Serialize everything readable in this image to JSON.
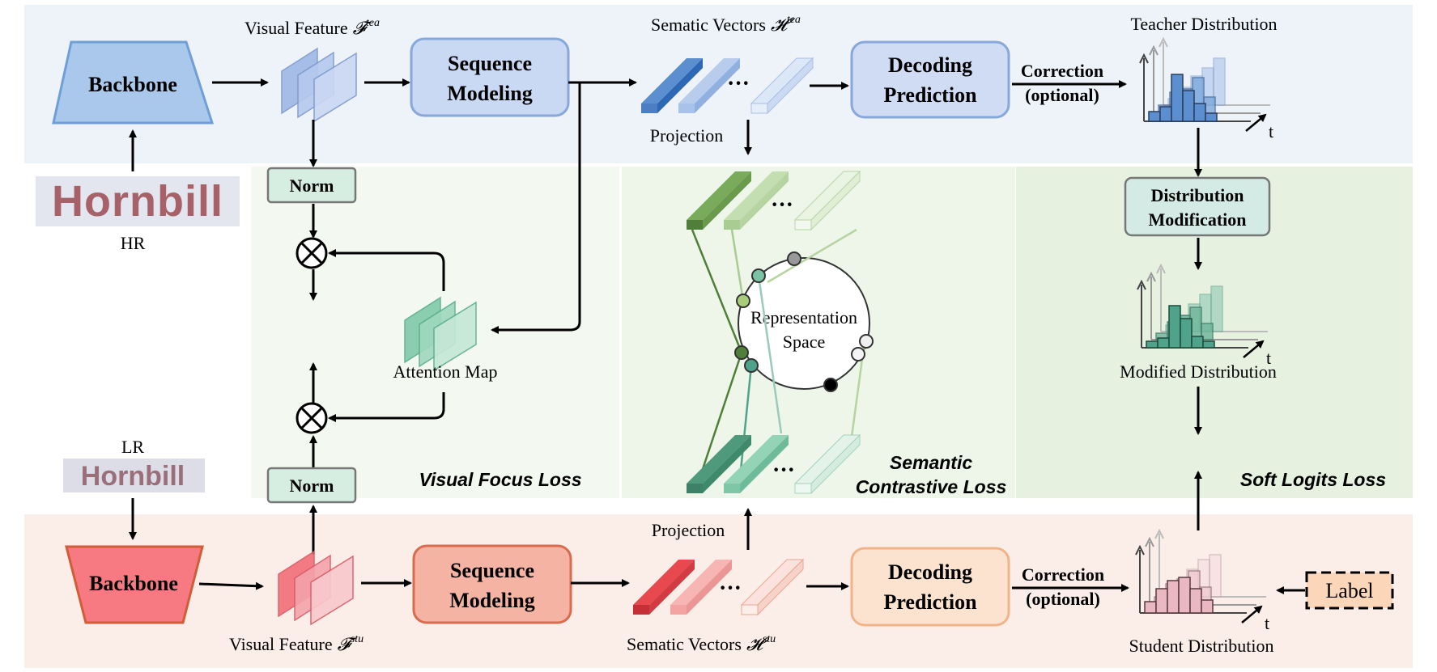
{
  "teacher": {
    "backbone": "Backbone",
    "visual_feature": "Visual Feature",
    "visual_feature_sym": "𝓕",
    "visual_feature_sup": "tea",
    "seq_line1": "Sequence",
    "seq_line2": "Modeling",
    "semantic_vectors": "Sematic Vectors",
    "semantic_vectors_sym": "𝓗",
    "semantic_vectors_sup": "tea",
    "dec_line1": "Decoding",
    "dec_line2": "Prediction",
    "correction": "Correction",
    "optional": "(optional)",
    "distribution": "Teacher Distribution",
    "projection": "Projection"
  },
  "student": {
    "backbone": "Backbone",
    "visual_feature": "Visual Feature",
    "visual_feature_sym": "𝓕",
    "visual_feature_sup": "stu",
    "seq_line1": "Sequence",
    "seq_line2": "Modeling",
    "semantic_vectors": "Sematic Vectors",
    "semantic_vectors_sym": "𝓗",
    "semantic_vectors_sup": "stu",
    "dec_line1": "Decoding",
    "dec_line2": "Prediction",
    "correction": "Correction",
    "optional": "(optional)",
    "distribution": "Student Distribution",
    "projection": "Projection",
    "label": "Label"
  },
  "images": {
    "hr_word": "Hornbill",
    "hr_label": "HR",
    "lr_word": "Hornbill",
    "lr_label": "LR"
  },
  "middle": {
    "norm_top": "Norm",
    "norm_bottom": "Norm",
    "attention_map": "Attention Map",
    "visual_focus_loss": "Visual Focus Loss",
    "rep_line1": "Representation",
    "rep_line2": "Space",
    "semantic_line1": "Semantic",
    "semantic_line2": "Contrastive Loss",
    "dist_mod_line1": "Distribution",
    "dist_mod_line2": "Modification",
    "modified_distribution": "Modified Distribution",
    "soft_logits_loss": "Soft Logits Loss",
    "ellipsis": "···",
    "t_axis": "t"
  },
  "colors": {
    "teacher_bg": "#eef3fa",
    "student_bg": "#fbeee9",
    "green_bg": "#eef6ea",
    "teacher_box": "#c9d8f3",
    "teacher_box_border": "#86a8da",
    "student_box": "#f5b3a3",
    "student_box_border": "#d96b4f",
    "decoding_student": "#fbe3cf",
    "backbone_teacher": "#a9c8ec",
    "backbone_student": "#f77a82"
  }
}
